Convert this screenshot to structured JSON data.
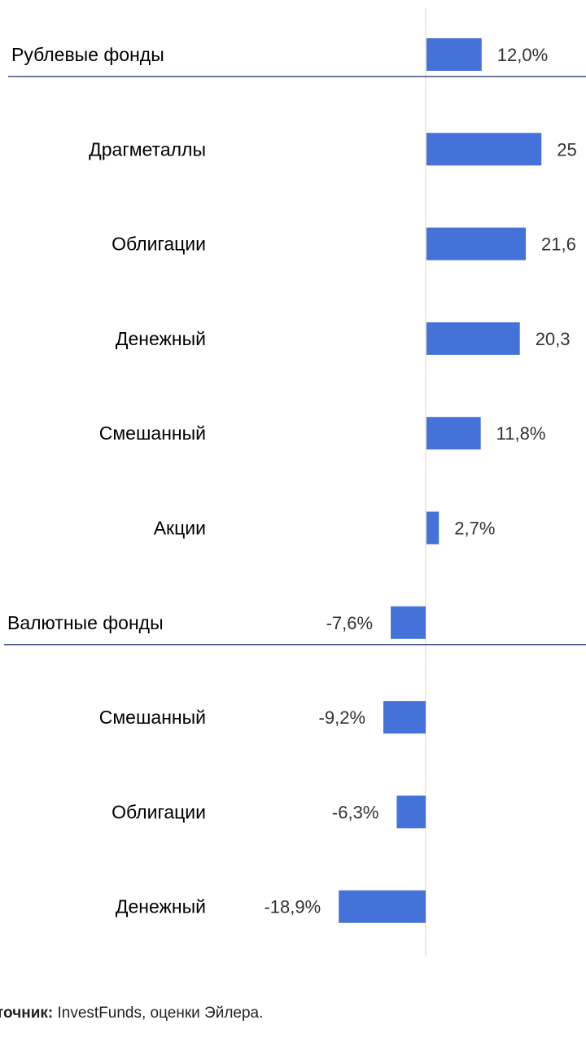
{
  "chart_data": {
    "type": "bar",
    "orientation": "horizontal",
    "categories": [
      "Рублевые фонды",
      "Драгметаллы",
      "Облигации",
      "Денежный",
      "Смешанный",
      "Акции",
      "Валютные фонды",
      "Смешанный",
      "Облигации",
      "Денежный"
    ],
    "values": [
      12.0,
      25,
      21.6,
      20.3,
      11.8,
      2.7,
      -7.6,
      -9.2,
      -6.3,
      -18.9
    ],
    "value_labels": [
      "12,0%",
      "25",
      "21,6",
      "20,3",
      "11,8%",
      "2,7%",
      "-7,6%",
      "-9,2%",
      "-6,3%",
      "-18,9%"
    ],
    "group_headers": [
      0,
      6
    ],
    "bar_color": "#4472d8",
    "zero_line_color": "#f0e0c8",
    "separator_color": "#3d4f8a"
  },
  "source": {
    "label": "точник:",
    "text": " InvestFunds, оценки Эйлера."
  }
}
